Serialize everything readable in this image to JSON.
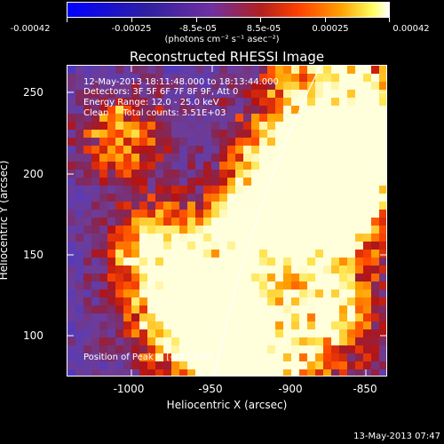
{
  "colorbar": {
    "ticks": [
      "-0.00042",
      "-0.00025",
      "-8.5e-05",
      "8.5e-05",
      "0.00025",
      "0.00042"
    ],
    "units": "(photons cm⁻² s⁻¹ asec⁻²)"
  },
  "plot": {
    "title": "Reconstructed RHESSI Image",
    "annotation": {
      "time_range": "12-May-2013 18:11:48.000 to 18:13:44.000",
      "detectors": "Detectors: 3F 5F 6F 7F 8F 9F, Att 0",
      "energy_range": "Energy Range: 12.0 - 25.0 keV",
      "clean_counts": "Clean     Total counts: 3.51E+03",
      "peak_position": "Position of Peak = [-893,196]"
    },
    "x_ticks": [
      "-1000",
      "-950",
      "-900",
      "-850"
    ],
    "y_ticks": [
      "250",
      "200",
      "150",
      "100"
    ],
    "x_label": "Heliocentric X (arcsec)",
    "y_label": "Heliocentric Y (arcsec)"
  },
  "footer": {
    "timestamp": "13-May-2013 07:47"
  },
  "colors": {
    "background": "#000000",
    "text": "#ffffff",
    "limb_line": "#ffffff"
  }
}
